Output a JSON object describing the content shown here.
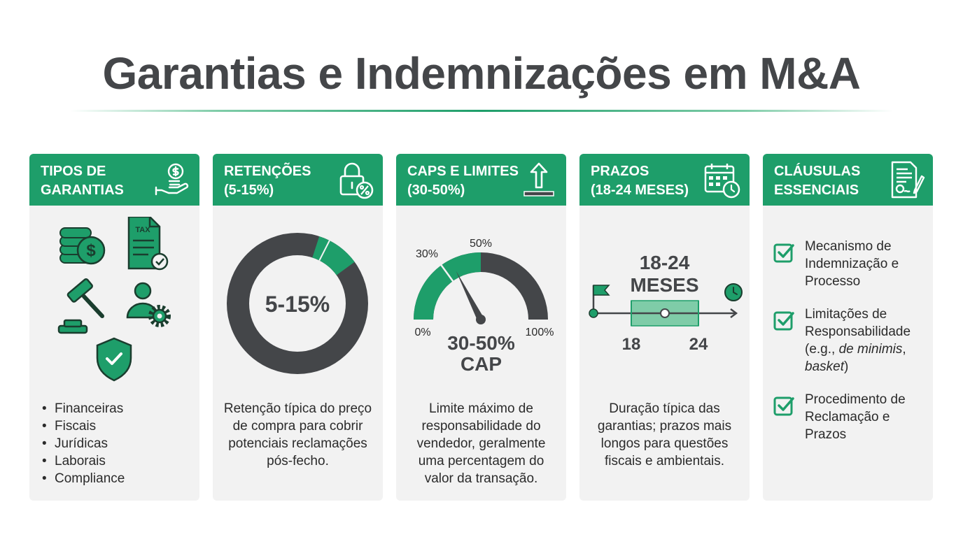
{
  "title": "Garantias e Indemnizações em M&A",
  "colors": {
    "accent": "#1e9e6a",
    "dark": "#444649",
    "card_bg": "#f2f2f2"
  },
  "cards": [
    {
      "title": "TIPOS DE\nGARANTIAS",
      "icon": "money-hand-icon",
      "icons": [
        "coins-dollar-icon",
        "tax-document-icon",
        "gavel-icon",
        "person-gear-icon",
        "shield-check-icon"
      ],
      "tax_label": "TAX",
      "bullets": [
        "Financeiras",
        "Fiscais",
        "Jurídicas",
        "Laborais",
        "Compliance"
      ]
    },
    {
      "title": "RETENÇÕES\n(5-15%)",
      "icon": "lock-percent-icon",
      "donut_label": "5-15%",
      "donut": {
        "highlight_start_pct": 5,
        "highlight_end_pct": 15,
        "divider_pct": 7.5
      },
      "description": "Retenção típica do preço de compra para cobrir potenciais reclamações pós-fecho."
    },
    {
      "title": "CAPS E LIMITES\n(30-50%)",
      "icon": "arrow-up-limit-icon",
      "gauge": {
        "min_label": "0%",
        "max_label": "100%",
        "low_label": "30%",
        "high_label": "50%",
        "range_start_pct": 0,
        "range_end_pct": 50,
        "needle_pct": 35
      },
      "cap_label": "30-50%\nCAP",
      "description": "Limite máximo de responsabilidade do vendedor, geralmente uma percentagem do valor da transação."
    },
    {
      "title": "PRAZOS\n(18-24 MESES)",
      "icon": "calendar-clock-icon",
      "timeline": {
        "headline": "18-24\nMESES",
        "start_label": "18",
        "end_label": "24"
      },
      "description": "Duração típica das garantias; prazos mais longos para questões fiscais e ambientais."
    },
    {
      "title": "CLÁUSULAS\nESSENCIAIS",
      "icon": "contract-pen-icon",
      "items": [
        {
          "text": "Mecanismo de Indemnização e Processo"
        },
        {
          "text_before": "Limitações de Responsabilidade (e.g., ",
          "italic1": "de minimis",
          "text_middle": ", ",
          "italic2": "basket",
          "text_after": ")"
        },
        {
          "text": "Procedimento de Reclamação e Prazos"
        }
      ]
    }
  ]
}
